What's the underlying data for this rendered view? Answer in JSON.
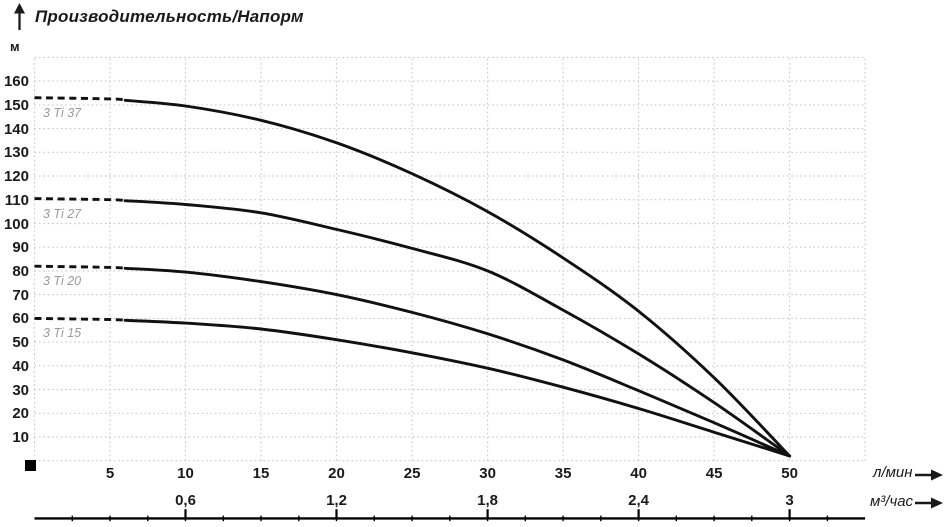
{
  "title": "Производительность/Напорм",
  "colors": {
    "curve": "#111111",
    "grid": "#c9c9c9",
    "ruler": "#000000",
    "curve_label": "#9a9a9a",
    "text": "#1a1a1a"
  },
  "chart_data": {
    "type": "line",
    "title": "Производительность/Напорм",
    "ylabel": "м",
    "grid": true,
    "y_axis": {
      "unit": "м",
      "ticks": [
        10,
        20,
        30,
        40,
        50,
        60,
        70,
        80,
        90,
        100,
        110,
        120,
        130,
        140,
        150,
        160
      ],
      "range": [
        0,
        170
      ],
      "grid_step": 10
    },
    "x_axes": [
      {
        "unit": "л/мин",
        "ticks": [
          5,
          10,
          15,
          20,
          25,
          30,
          35,
          40,
          45,
          50
        ],
        "range": [
          0,
          55
        ],
        "grid_step": 5
      },
      {
        "unit": "м³/час",
        "tick_labels": [
          "0,6",
          "1,2",
          "1,8",
          "2,4",
          "3"
        ],
        "tick_positions_lmin": [
          10,
          20,
          30,
          40,
          50
        ],
        "minor_tick_step_lmin": 2.5
      }
    ],
    "series": [
      {
        "name": "3 Ti 37",
        "dash_until": 6,
        "points": [
          [
            0,
            153
          ],
          [
            5,
            152.5
          ],
          [
            10,
            149.5
          ],
          [
            15,
            143.5
          ],
          [
            20,
            134
          ],
          [
            25,
            121
          ],
          [
            30,
            105
          ],
          [
            35,
            85.5
          ],
          [
            40,
            63
          ],
          [
            45,
            35
          ],
          [
            50,
            2
          ]
        ]
      },
      {
        "name": "3 Ti 27",
        "dash_until": 6,
        "points": [
          [
            0,
            110.5
          ],
          [
            5,
            110
          ],
          [
            10,
            108
          ],
          [
            15,
            104.5
          ],
          [
            20,
            97.5
          ],
          [
            25,
            89.5
          ],
          [
            30,
            80
          ],
          [
            35,
            63.5
          ],
          [
            40,
            45
          ],
          [
            45,
            24.5
          ],
          [
            50,
            2
          ]
        ]
      },
      {
        "name": "3 Ti 20",
        "dash_until": 6,
        "points": [
          [
            0,
            82
          ],
          [
            5,
            81.5
          ],
          [
            10,
            79.5
          ],
          [
            15,
            75.5
          ],
          [
            20,
            70
          ],
          [
            25,
            62.5
          ],
          [
            30,
            53.5
          ],
          [
            35,
            42.5
          ],
          [
            40,
            29.5
          ],
          [
            45,
            16
          ],
          [
            50,
            2
          ]
        ]
      },
      {
        "name": "3 Ti 15",
        "dash_until": 6,
        "points": [
          [
            0,
            60
          ],
          [
            5,
            59.5
          ],
          [
            10,
            58
          ],
          [
            15,
            55.5
          ],
          [
            20,
            51
          ],
          [
            25,
            45.5
          ],
          [
            30,
            39
          ],
          [
            35,
            31
          ],
          [
            40,
            22
          ],
          [
            45,
            12
          ],
          [
            50,
            2
          ]
        ]
      }
    ]
  }
}
